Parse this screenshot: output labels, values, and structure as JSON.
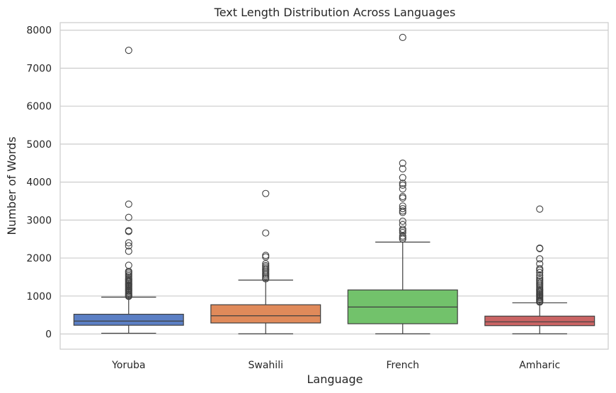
{
  "chart_data": {
    "type": "box",
    "title": "Text Length Distribution Across Languages",
    "xlabel": "Language",
    "ylabel": "Number of Words",
    "ylim": [
      -400,
      8200
    ],
    "yticks": [
      0,
      1000,
      2000,
      3000,
      4000,
      5000,
      6000,
      7000,
      8000
    ],
    "grid": true,
    "categories": [
      "Yoruba",
      "Swahili",
      "French",
      "Amharic"
    ],
    "colors": [
      "#5b7fc4",
      "#e08a5a",
      "#72c26b",
      "#c96464"
    ],
    "boxes": [
      {
        "name": "Yoruba",
        "whisker_low": 20,
        "q1": 230,
        "median": 340,
        "q3": 520,
        "whisker_high": 970,
        "outliers": [
          7470,
          3420,
          3070,
          2720,
          2700,
          2400,
          2320,
          2180,
          1810,
          1650,
          1620,
          1580,
          1540,
          1500,
          1460,
          1430,
          1400,
          1370,
          1340,
          1310,
          1280,
          1250,
          1220,
          1190,
          1160,
          1130,
          1100,
          1070,
          1040,
          1010,
          990
        ]
      },
      {
        "name": "Swahili",
        "whisker_low": 5,
        "q1": 290,
        "median": 480,
        "q3": 770,
        "whisker_high": 1420,
        "outliers": [
          3700,
          2660,
          2070,
          2030,
          1850,
          1800,
          1760,
          1720,
          1680,
          1640,
          1600,
          1560,
          1520,
          1480,
          1450
        ]
      },
      {
        "name": "French",
        "whisker_low": 5,
        "q1": 270,
        "median": 710,
        "q3": 1160,
        "whisker_high": 2420,
        "outliers": [
          7810,
          4500,
          4350,
          4120,
          3970,
          3920,
          3820,
          3620,
          3580,
          3370,
          3300,
          3240,
          3200,
          2970,
          2880,
          2760,
          2720,
          2670,
          2580,
          2540,
          2500
        ]
      },
      {
        "name": "Amharic",
        "whisker_low": 5,
        "q1": 220,
        "median": 320,
        "q3": 470,
        "whisker_high": 820,
        "outliers": [
          3290,
          2260,
          2250,
          1980,
          1850,
          1720,
          1680,
          1620,
          1540,
          1480,
          1430,
          1390,
          1350,
          1310,
          1270,
          1230,
          1190,
          1160,
          1130,
          1100,
          1070,
          1040,
          1010,
          980,
          950,
          920,
          890,
          860,
          840
        ]
      }
    ]
  }
}
